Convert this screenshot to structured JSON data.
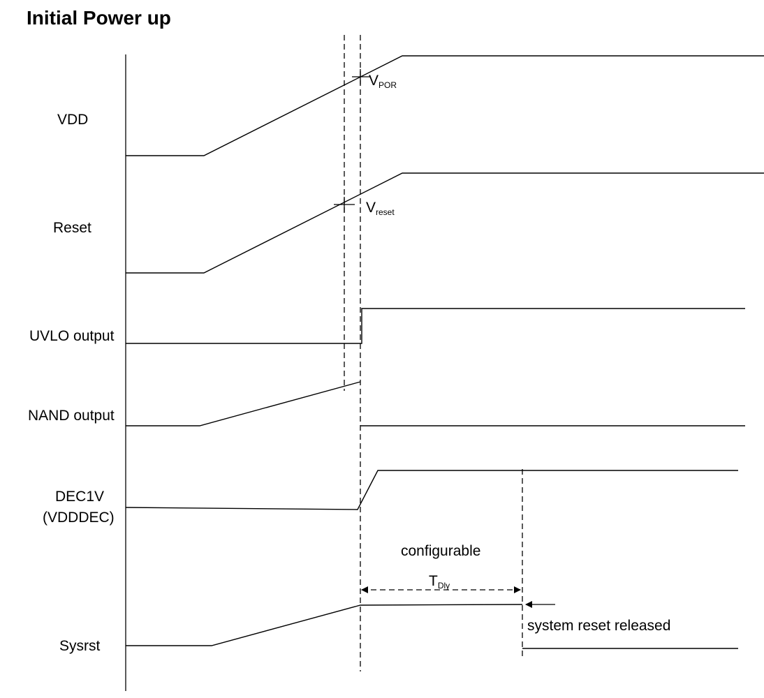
{
  "title": "Initial Power up",
  "signals": [
    {
      "id": "vdd",
      "label": "VDD"
    },
    {
      "id": "reset",
      "label": "Reset"
    },
    {
      "id": "uvlo",
      "label": "UVLO output"
    },
    {
      "id": "nand",
      "label": "NAND output"
    },
    {
      "id": "dec1v",
      "label": "DEC1V",
      "label2": "(VDDDEC)"
    },
    {
      "id": "sysrst",
      "label": "Sysrst"
    }
  ],
  "annotations": {
    "vpor": {
      "main": "V",
      "sub": "POR"
    },
    "vreset": {
      "main": "V",
      "sub": "reset"
    },
    "tdly": {
      "main": "T",
      "sub": "Dly"
    },
    "configurable": "configurable",
    "release": "system reset released"
  }
}
